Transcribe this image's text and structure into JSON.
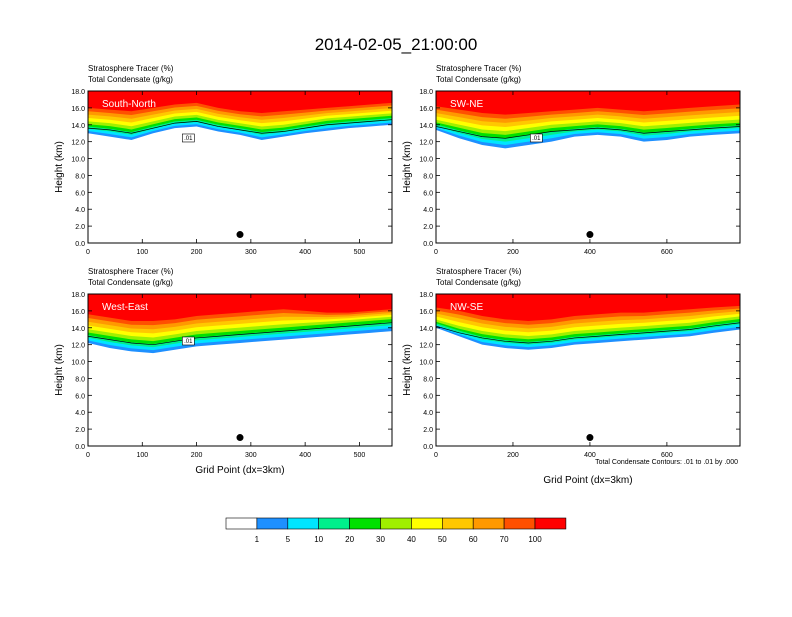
{
  "page": {
    "title": "2014-02-05_21:00:00",
    "footnote": "Total Condensate Contours: .01 to .01 by .000"
  },
  "colorbar": {
    "labels": [
      "1",
      "5",
      "10",
      "20",
      "30",
      "40",
      "50",
      "60",
      "70",
      "100"
    ],
    "colors": [
      "#ffffff",
      "#1e90ff",
      "#00e5ff",
      "#00f08c",
      "#00e000",
      "#a0f000",
      "#ffff00",
      "#ffc800",
      "#ff9900",
      "#ff5000",
      "#ff0000"
    ]
  },
  "chart_data": [
    {
      "type": "area",
      "panel": "South-North",
      "title_line1": "Stratosphere Tracer   (%)",
      "title_line2": "Total Condensate   (g/kg)",
      "xlabel": "",
      "ylabel": "Height (km)",
      "xlim": [
        0,
        560
      ],
      "ylim": [
        0,
        18
      ],
      "xticks": [
        0,
        100,
        200,
        300,
        400,
        500
      ],
      "yticks": [
        0.0,
        2.0,
        4.0,
        6.0,
        8.0,
        10.0,
        12.0,
        14.0,
        16.0,
        18.0
      ],
      "marker_x": 280,
      "contour_label": ".01",
      "tracer_boundary": {
        "x": [
          0,
          40,
          80,
          120,
          160,
          200,
          240,
          280,
          320,
          360,
          400,
          440,
          480,
          520,
          560
        ],
        "bottom_km": [
          13.0,
          12.6,
          12.2,
          13.0,
          13.6,
          13.8,
          13.2,
          12.8,
          12.2,
          12.6,
          13.0,
          13.3,
          13.6,
          13.8,
          14.0
        ],
        "mid_km": [
          14.2,
          14.0,
          13.6,
          14.2,
          14.8,
          15.0,
          14.4,
          14.0,
          13.6,
          13.8,
          14.2,
          14.6,
          14.8,
          15.0,
          15.2
        ],
        "top_km": [
          16.0,
          15.8,
          15.6,
          16.0,
          16.4,
          16.6,
          16.0,
          15.6,
          15.4,
          15.6,
          15.8,
          16.0,
          16.2,
          16.4,
          16.6
        ]
      }
    },
    {
      "type": "area",
      "panel": "SW-NE",
      "title_line1": "Stratosphere Tracer   (%)",
      "title_line2": "Total Condensate   (g/kg)",
      "xlabel": "",
      "ylabel": "Height (km)",
      "xlim": [
        0,
        790
      ],
      "ylim": [
        0,
        18
      ],
      "xticks": [
        0,
        200,
        400,
        600
      ],
      "yticks": [
        0.0,
        2.0,
        4.0,
        6.0,
        8.0,
        10.0,
        12.0,
        14.0,
        16.0,
        18.0
      ],
      "marker_x": 400,
      "contour_label": ".01",
      "tracer_boundary": {
        "x": [
          0,
          60,
          120,
          180,
          240,
          300,
          360,
          420,
          480,
          540,
          600,
          660,
          720,
          790
        ],
        "bottom_km": [
          13.4,
          12.4,
          11.6,
          11.2,
          11.6,
          12.0,
          12.6,
          12.8,
          12.6,
          12.0,
          12.2,
          12.6,
          12.8,
          13.0
        ],
        "mid_km": [
          14.4,
          13.8,
          13.2,
          13.0,
          13.4,
          13.8,
          14.0,
          14.2,
          14.0,
          13.6,
          13.8,
          14.0,
          14.2,
          14.4
        ],
        "top_km": [
          16.2,
          15.8,
          15.4,
          15.2,
          15.4,
          15.6,
          15.8,
          16.0,
          15.8,
          15.6,
          15.8,
          16.0,
          16.2,
          16.4
        ]
      }
    },
    {
      "type": "area",
      "panel": "West-East",
      "title_line1": "Stratosphere Tracer   (%)",
      "title_line2": "Total Condensate   (g/kg)",
      "xlabel": "Grid Point (dx=3km)",
      "ylabel": "Height (km)",
      "xlim": [
        0,
        560
      ],
      "ylim": [
        0,
        18
      ],
      "xticks": [
        0,
        100,
        200,
        300,
        400,
        500
      ],
      "yticks": [
        0.0,
        2.0,
        4.0,
        6.0,
        8.0,
        10.0,
        12.0,
        14.0,
        16.0,
        18.0
      ],
      "marker_x": 280,
      "contour_label": ".01",
      "tracer_boundary": {
        "x": [
          0,
          40,
          80,
          120,
          160,
          200,
          240,
          280,
          320,
          360,
          400,
          440,
          480,
          520,
          560
        ],
        "bottom_km": [
          12.2,
          11.6,
          11.2,
          11.0,
          11.4,
          11.8,
          12.0,
          12.2,
          12.4,
          12.6,
          12.8,
          13.0,
          13.2,
          13.4,
          13.6
        ],
        "mid_km": [
          13.6,
          13.2,
          12.8,
          12.6,
          13.0,
          13.4,
          13.6,
          13.8,
          14.0,
          14.2,
          14.4,
          14.6,
          14.8,
          15.0,
          15.2
        ],
        "top_km": [
          15.6,
          15.2,
          14.8,
          14.8,
          15.0,
          15.4,
          15.6,
          15.8,
          16.0,
          16.2,
          16.0,
          15.8,
          15.8,
          16.0,
          16.2
        ]
      }
    },
    {
      "type": "area",
      "panel": "NW-SE",
      "title_line1": "Stratosphere Tracer   (%)",
      "title_line2": "Total Condensate   (g/kg)",
      "xlabel": "Grid Point (dx=3km)",
      "ylabel": "Height (km)",
      "xlim": [
        0,
        790
      ],
      "ylim": [
        0,
        18
      ],
      "xticks": [
        0,
        200,
        400,
        600
      ],
      "yticks": [
        0.0,
        2.0,
        4.0,
        6.0,
        8.0,
        10.0,
        12.0,
        14.0,
        16.0,
        18.0
      ],
      "marker_x": 400,
      "contour_label": "",
      "tracer_boundary": {
        "x": [
          0,
          60,
          120,
          180,
          240,
          300,
          360,
          420,
          480,
          540,
          600,
          660,
          720,
          790
        ],
        "bottom_km": [
          14.0,
          13.0,
          12.0,
          11.6,
          11.4,
          11.6,
          12.0,
          12.2,
          12.4,
          12.6,
          12.8,
          13.0,
          13.4,
          13.8
        ],
        "mid_km": [
          14.8,
          14.0,
          13.4,
          13.0,
          12.8,
          13.0,
          13.4,
          13.6,
          13.8,
          14.0,
          14.2,
          14.4,
          14.8,
          15.2
        ],
        "top_km": [
          16.4,
          16.0,
          15.4,
          15.0,
          14.8,
          15.0,
          15.4,
          15.6,
          15.8,
          15.8,
          16.0,
          16.2,
          16.4,
          16.6
        ]
      }
    }
  ]
}
